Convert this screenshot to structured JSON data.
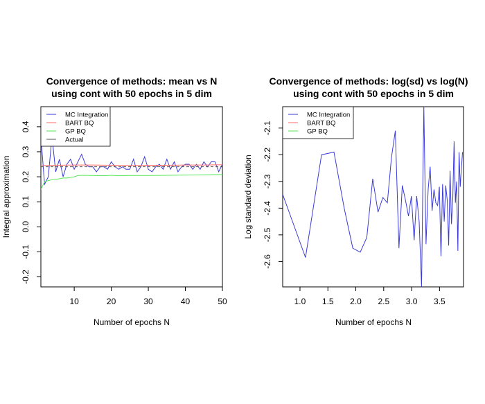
{
  "chart_data": [
    {
      "type": "line",
      "title_line1": "Convergence of methods: mean vs N",
      "title_line2": "using cont with 50 epochs in 5 dim",
      "xlabel": "Number of epochs N",
      "ylabel": "Integral approximation",
      "xlim": [
        1,
        50
      ],
      "ylim": [
        -0.24,
        0.48
      ],
      "x_ticks": [
        10,
        20,
        30,
        40,
        50
      ],
      "y_ticks": [
        -0.2,
        -0.1,
        0.0,
        0.1,
        0.2,
        0.3,
        0.4
      ],
      "x_tick_labels": [
        "10",
        "20",
        "30",
        "40",
        "50"
      ],
      "y_tick_labels": [
        "-0.2",
        "-0.1",
        "0.0",
        "0.1",
        "0.2",
        "0.3",
        "0.4"
      ],
      "legend_position": "top-left",
      "series": [
        {
          "name": "MC Integration",
          "color": "#3a3ad6",
          "x": [
            1,
            2,
            3,
            4,
            5,
            6,
            7,
            8,
            9,
            10,
            11,
            12,
            13,
            14,
            15,
            16,
            17,
            18,
            19,
            20,
            21,
            22,
            23,
            24,
            25,
            26,
            27,
            28,
            29,
            30,
            31,
            32,
            33,
            34,
            35,
            36,
            37,
            38,
            39,
            40,
            41,
            42,
            43,
            44,
            45,
            46,
            47,
            48,
            49,
            50
          ],
          "y": [
            0.36,
            0.17,
            0.2,
            0.36,
            0.22,
            0.27,
            0.2,
            0.25,
            0.27,
            0.23,
            0.26,
            0.29,
            0.25,
            0.24,
            0.24,
            0.22,
            0.24,
            0.24,
            0.23,
            0.26,
            0.24,
            0.23,
            0.24,
            0.23,
            0.23,
            0.27,
            0.22,
            0.24,
            0.28,
            0.23,
            0.22,
            0.24,
            0.25,
            0.23,
            0.27,
            0.23,
            0.26,
            0.22,
            0.24,
            0.25,
            0.25,
            0.23,
            0.25,
            0.23,
            0.26,
            0.24,
            0.26,
            0.26,
            0.22,
            0.25
          ]
        },
        {
          "name": "BART BQ",
          "color": "#ff6b6b",
          "x": [
            1,
            5,
            10,
            15,
            20,
            25,
            30,
            35,
            40,
            45,
            50
          ],
          "y": [
            0.245,
            0.246,
            0.247,
            0.247,
            0.246,
            0.245,
            0.246,
            0.246,
            0.247,
            0.247,
            0.248
          ]
        },
        {
          "name": "GP BQ",
          "color": "#55e655",
          "x": [
            1,
            2,
            3,
            4,
            5,
            6,
            7,
            8,
            9,
            10,
            11,
            12,
            15,
            18,
            20,
            22,
            25,
            30,
            35,
            40,
            45,
            50
          ],
          "y": [
            0.15,
            0.18,
            0.185,
            0.188,
            0.19,
            0.192,
            0.195,
            0.195,
            0.197,
            0.2,
            0.205,
            0.206,
            0.205,
            0.204,
            0.206,
            0.204,
            0.205,
            0.205,
            0.206,
            0.207,
            0.208,
            0.209
          ]
        },
        {
          "name": "Actual",
          "color": "#555555",
          "dashed": true,
          "x": [
            1,
            50
          ],
          "y": [
            0.24,
            0.24
          ]
        }
      ]
    },
    {
      "type": "line",
      "title_line1": "Convergence of methods: log(sd) vs log(N)",
      "title_line2": "using cont with 50 epochs in 5 dim",
      "xlabel": "Number of epochs N",
      "ylabel": "Log standard deviation",
      "xlim": [
        0.69,
        3.93
      ],
      "ylim": [
        -2.695,
        -2.02
      ],
      "x_ticks": [
        1.0,
        1.5,
        2.0,
        2.5,
        3.0,
        3.5
      ],
      "y_ticks": [
        -2.6,
        -2.5,
        -2.4,
        -2.3,
        -2.2,
        -2.1
      ],
      "x_tick_labels": [
        "1.0",
        "1.5",
        "2.0",
        "2.5",
        "3.0",
        "3.5"
      ],
      "y_tick_labels": [
        "-2.6",
        "-2.5",
        "-2.4",
        "-2.3",
        "-2.2",
        "-2.1"
      ],
      "legend_position": "top-left",
      "series": [
        {
          "name": "MC Integration",
          "color": "#3a3ad6",
          "x": [
            0.693,
            1.099,
            1.386,
            1.609,
            1.792,
            1.946,
            2.079,
            2.197,
            2.303,
            2.398,
            2.485,
            2.565,
            2.639,
            2.708,
            2.773,
            2.833,
            2.89,
            2.944,
            2.996,
            3.045,
            3.091,
            3.135,
            3.178,
            3.219,
            3.258,
            3.296,
            3.332,
            3.367,
            3.401,
            3.434,
            3.466,
            3.497,
            3.526,
            3.555,
            3.584,
            3.611,
            3.638,
            3.664,
            3.689,
            3.714,
            3.738,
            3.761,
            3.784,
            3.807,
            3.829,
            3.85,
            3.871,
            3.892,
            3.912
          ],
          "y": [
            -2.35,
            -2.585,
            -2.2,
            -2.19,
            -2.4,
            -2.55,
            -2.565,
            -2.51,
            -2.29,
            -2.415,
            -2.36,
            -2.38,
            -2.21,
            -2.11,
            -2.55,
            -2.315,
            -2.37,
            -2.43,
            -2.355,
            -2.52,
            -2.355,
            -2.45,
            -2.695,
            -2.02,
            -2.535,
            -2.33,
            -2.245,
            -2.41,
            -2.33,
            -2.38,
            -2.39,
            -2.32,
            -2.58,
            -2.31,
            -2.45,
            -2.315,
            -2.37,
            -2.54,
            -2.26,
            -2.46,
            -2.36,
            -2.15,
            -2.38,
            -2.3,
            -2.56,
            -2.19,
            -2.32,
            -2.25,
            -2.19
          ]
        }
      ]
    }
  ]
}
